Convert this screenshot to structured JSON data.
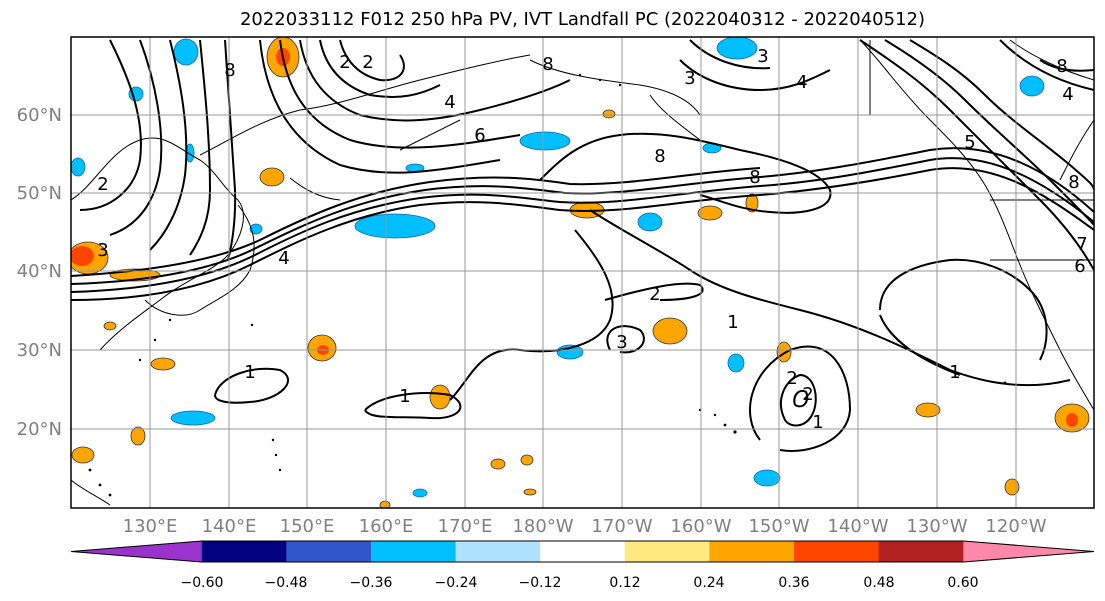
{
  "title": "2022033112 F012 250 hPa PV, IVT Landfall PC (2022040312 - 2022040512)",
  "lat_labels": [
    "60°N",
    "50°N",
    "40°N",
    "30°N",
    "20°N"
  ],
  "lon_labels": [
    "130°E",
    "140°E",
    "150°E",
    "160°E",
    "170°E",
    "180°W",
    "170°W",
    "160°W",
    "150°W",
    "140°W",
    "130°W",
    "120°W"
  ],
  "colorbar": {
    "colors": [
      "#9933cc",
      "#000080",
      "#3355cc",
      "#00bfff",
      "#b0e2ff",
      "#ffffff",
      "#ffea80",
      "#ffa500",
      "#ff4500",
      "#b22222",
      "#ff88aa"
    ],
    "tick_labels": [
      "−0.60",
      "−0.48",
      "−0.36",
      "−0.24",
      "−0.12",
      "0.12",
      "0.24",
      "0.36",
      "0.48",
      "0.60"
    ]
  },
  "contour_labels": [
    "8",
    "2",
    "2",
    "4",
    "6",
    "4",
    "8",
    "3",
    "8",
    "3",
    "2",
    "3",
    "4",
    "8",
    "2",
    "3",
    "1",
    "1",
    "1",
    "2",
    "1",
    "1",
    "2",
    "8",
    "6",
    "7",
    "8",
    "4",
    "5"
  ]
}
